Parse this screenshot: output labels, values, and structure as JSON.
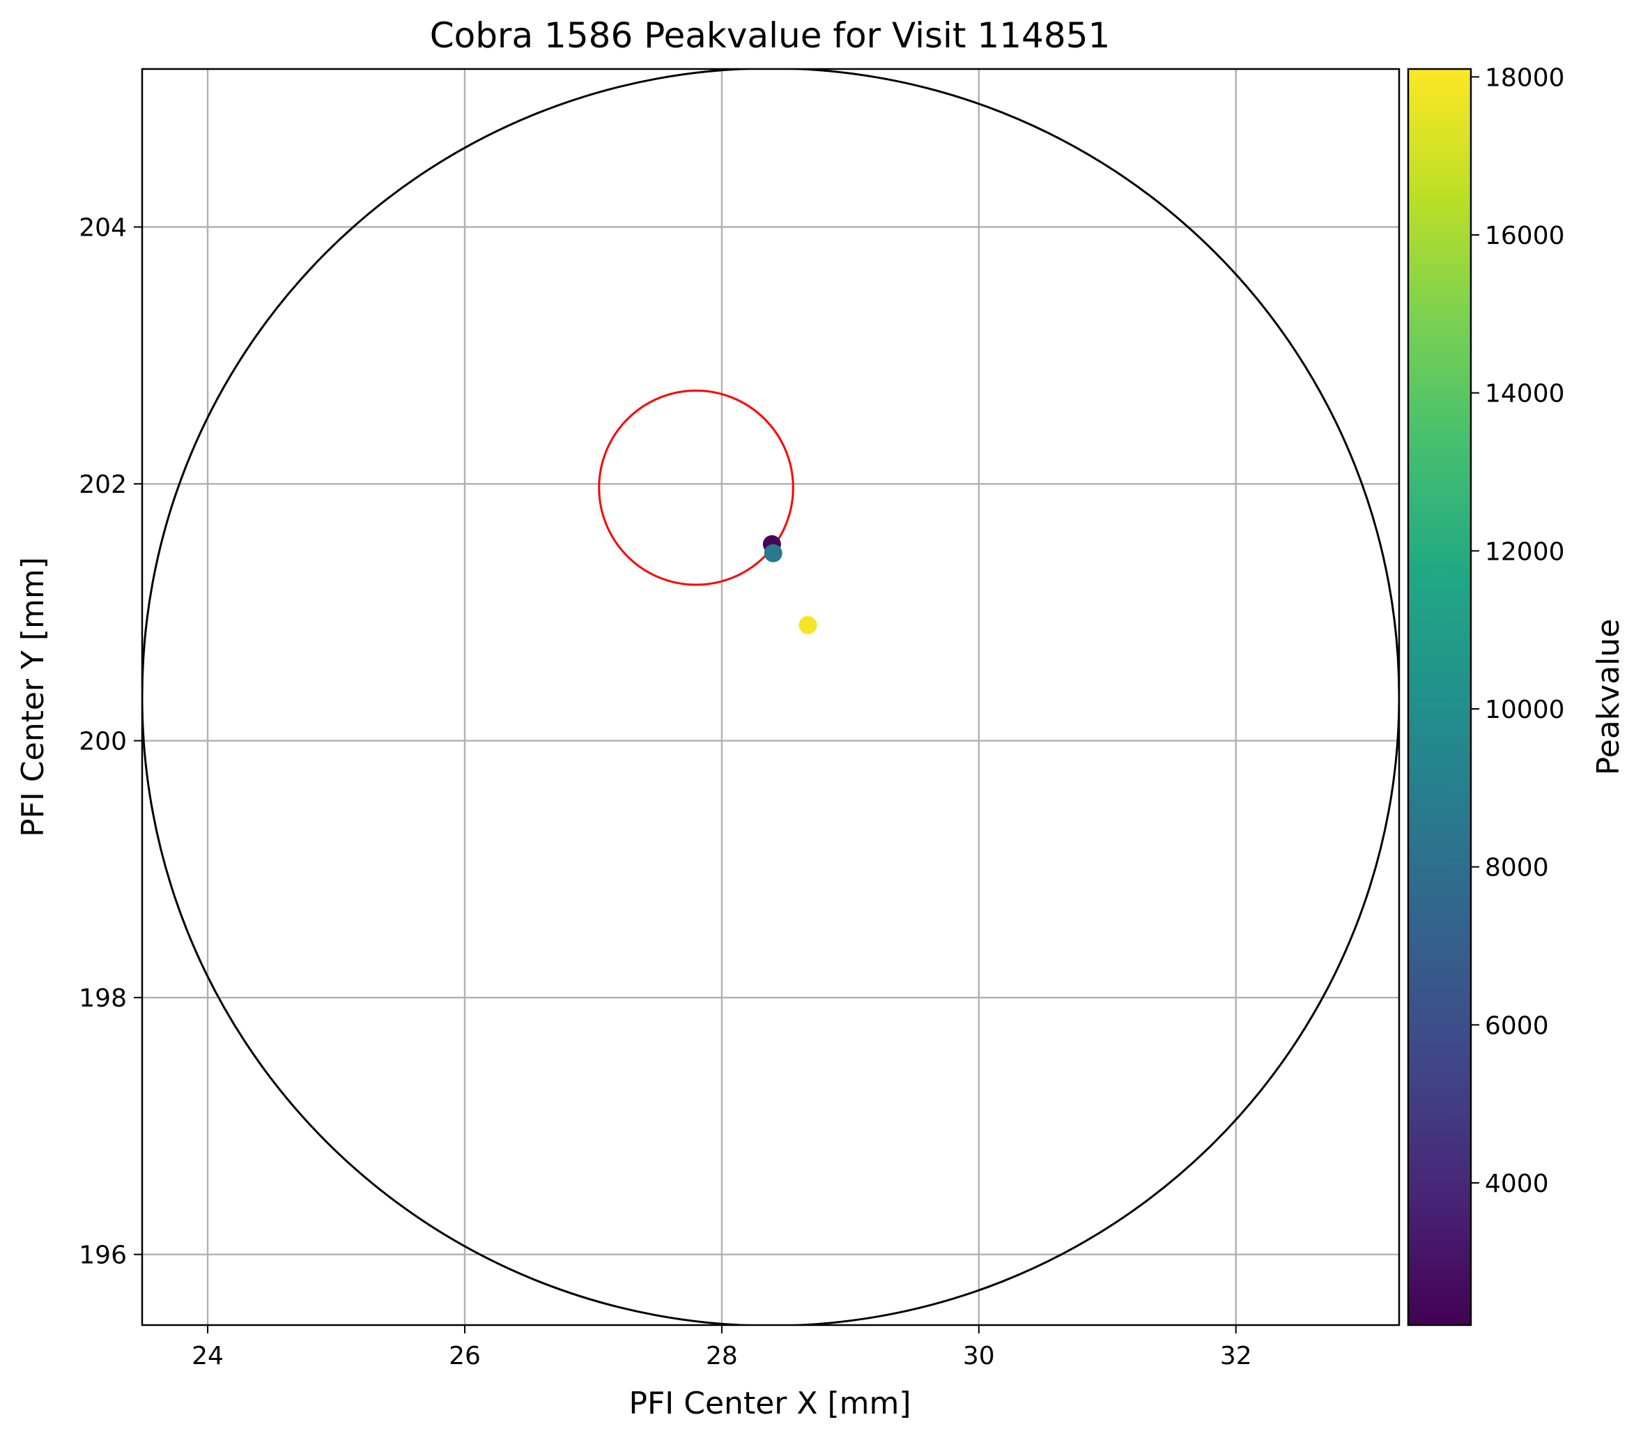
{
  "chart_data": {
    "type": "scatter",
    "title": "Cobra 1586 Peakvalue for Visit 114851",
    "xlabel": "PFI Center X [mm]",
    "ylabel": "PFI Center Y [mm]",
    "xlim": [
      23.49,
      33.27
    ],
    "ylim": [
      195.45,
      205.23
    ],
    "xticks": [
      "24",
      "26",
      "28",
      "30",
      "32"
    ],
    "yticks": [
      "196",
      "198",
      "200",
      "202",
      "204"
    ],
    "grid": true,
    "points": [
      {
        "x": 28.39,
        "y": 201.53,
        "peakvalue": 2400
      },
      {
        "x": 28.4,
        "y": 201.46,
        "peakvalue": 8600
      },
      {
        "x": 28.67,
        "y": 200.9,
        "peakvalue": 17900
      }
    ],
    "circles": [
      {
        "name": "patrol",
        "cx": 28.38,
        "cy": 200.34,
        "r": 4.89,
        "color": "#000000"
      },
      {
        "name": "target",
        "cx": 27.8,
        "cy": 201.97,
        "r": 0.755,
        "color": "#ff0000"
      }
    ],
    "colorbar": {
      "label": "Peakvalue",
      "colormap": "viridis",
      "vmin": 2200,
      "vmax": 18100,
      "ticks": [
        "4000",
        "6000",
        "8000",
        "10000",
        "12000",
        "14000",
        "16000",
        "18000"
      ]
    }
  }
}
